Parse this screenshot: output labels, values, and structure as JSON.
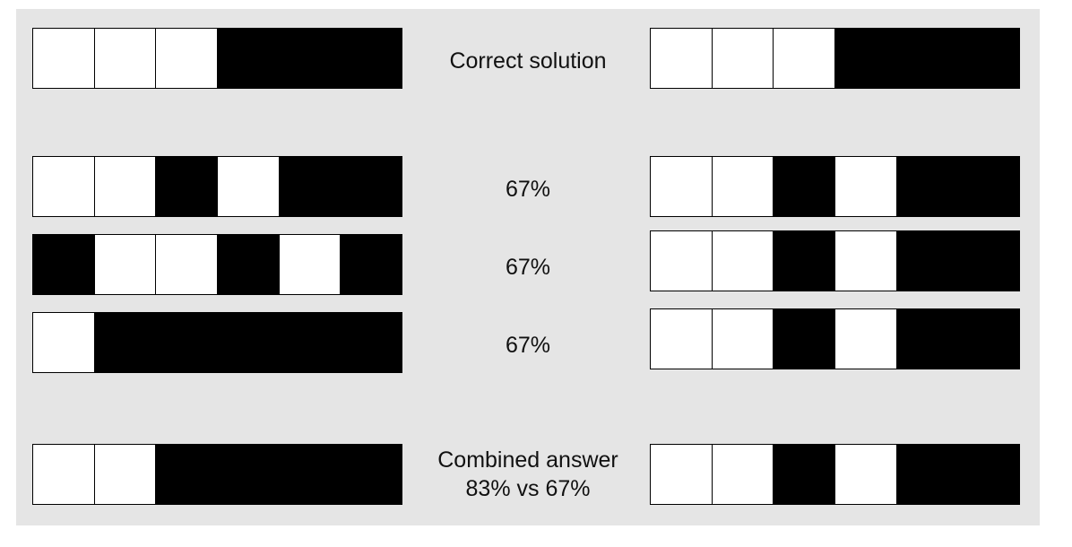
{
  "colors": {
    "background": "#e5e5e5",
    "on": "#ffffff",
    "off": "#000000"
  },
  "rows": [
    {
      "label_lines": [
        "Correct solution"
      ],
      "left": [
        1,
        1,
        1,
        0,
        0,
        0
      ],
      "right": [
        1,
        1,
        1,
        0,
        0,
        0
      ]
    },
    {
      "label_lines": [
        "67%"
      ],
      "left": [
        1,
        1,
        0,
        1,
        0,
        0
      ],
      "right": [
        1,
        1,
        0,
        1,
        0,
        0
      ]
    },
    {
      "label_lines": [
        "67%"
      ],
      "left": [
        0,
        1,
        1,
        0,
        1,
        0
      ],
      "right": [
        1,
        1,
        0,
        1,
        0,
        0
      ]
    },
    {
      "label_lines": [
        "67%"
      ],
      "left": [
        1,
        0,
        0,
        0,
        0,
        0
      ],
      "right": [
        1,
        1,
        0,
        1,
        0,
        0
      ]
    },
    {
      "label_lines": [
        "Combined answer",
        "83% vs 67%"
      ],
      "left": [
        1,
        1,
        0,
        0,
        0,
        0
      ],
      "right": [
        1,
        1,
        0,
        1,
        0,
        0
      ]
    }
  ]
}
